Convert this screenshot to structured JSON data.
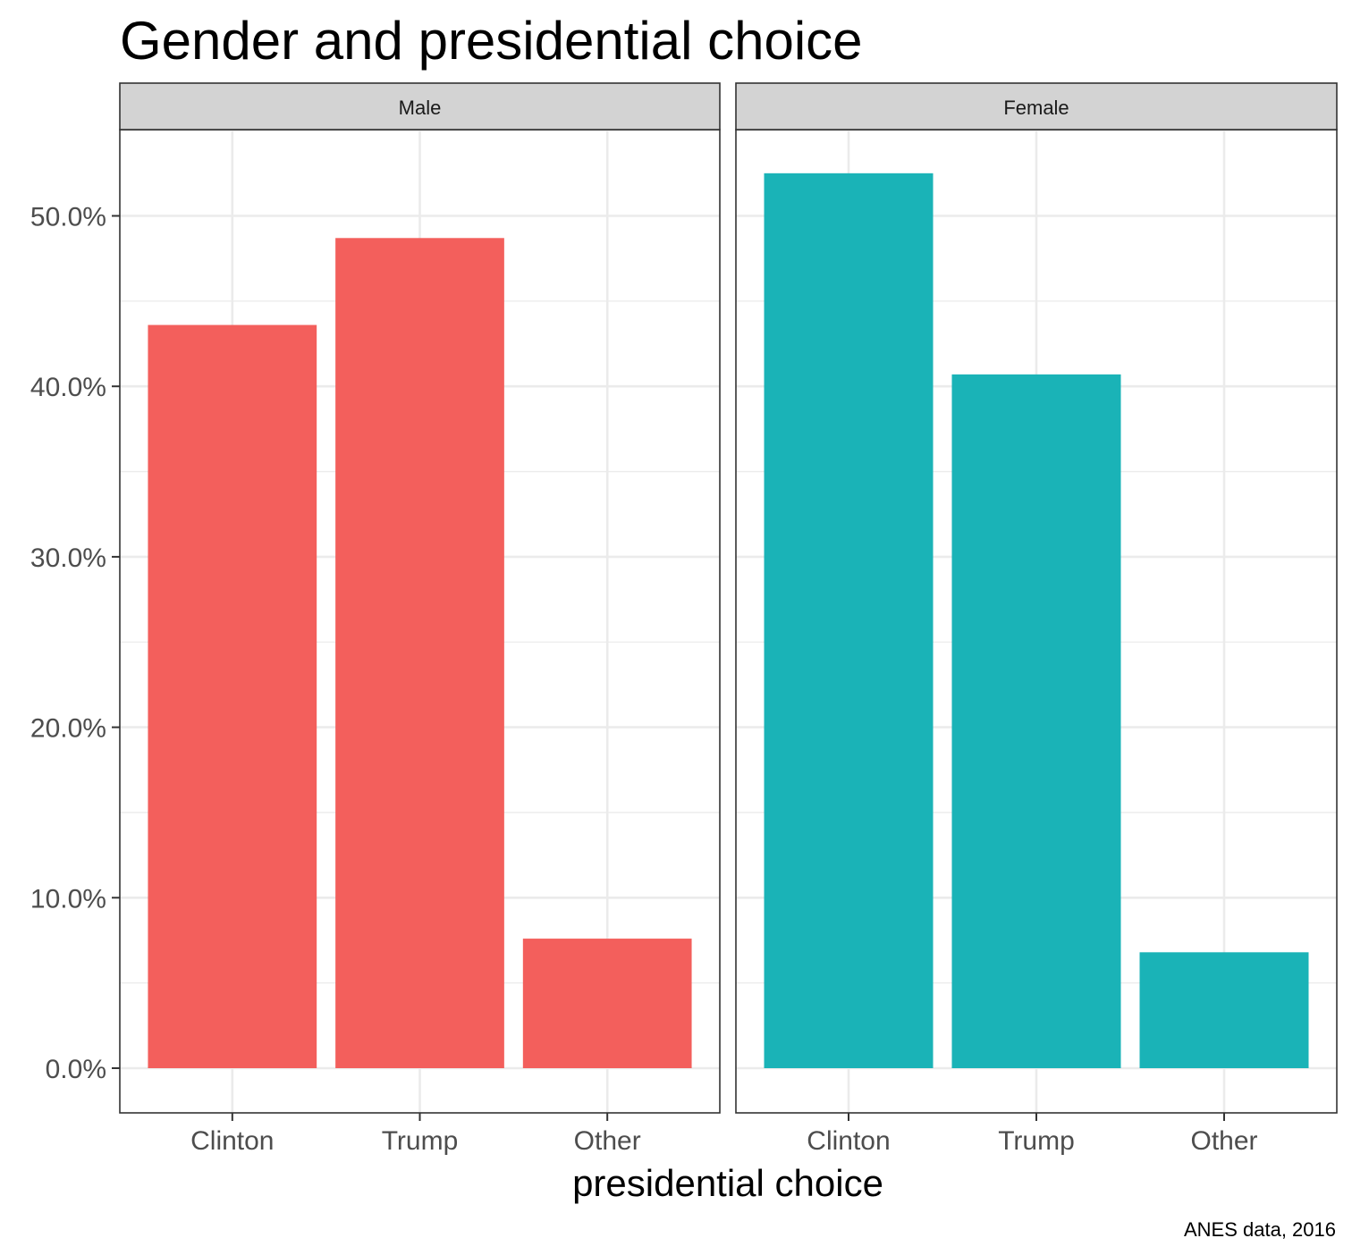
{
  "chart_data": {
    "type": "bar",
    "title": "Gender and presidential choice",
    "xlabel": "presidential choice",
    "ylabel": "",
    "caption": "ANES data, 2016",
    "categories": [
      "Clinton",
      "Trump",
      "Other"
    ],
    "y_ticks": [
      "0.0%",
      "10.0%",
      "20.0%",
      "30.0%",
      "40.0%",
      "50.0%"
    ],
    "ylim": [
      0,
      55
    ],
    "grid": true,
    "legend": "none",
    "facets": [
      {
        "name": "Male",
        "color": "#F35F5C",
        "values": [
          43.6,
          48.7,
          7.6
        ]
      },
      {
        "name": "Female",
        "color": "#1AB3B7",
        "values": [
          52.5,
          40.7,
          6.8
        ]
      }
    ]
  }
}
